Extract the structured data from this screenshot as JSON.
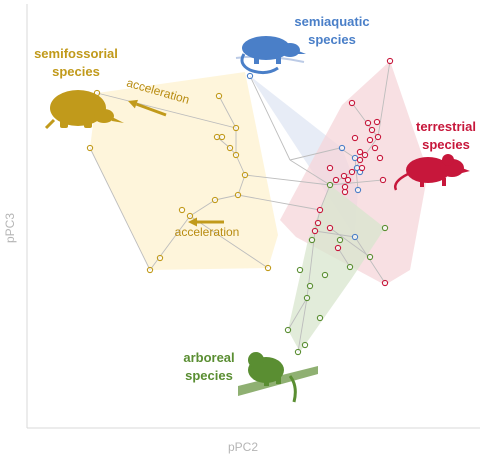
{
  "chart_data": {
    "type": "scatter",
    "title": "",
    "xlabel": "pPC2",
    "ylabel": "pPC3",
    "grid": false,
    "legend": "none",
    "annotations": [
      "acceleration",
      "acceleration"
    ],
    "colors": {
      "semifossorial": "#c19a1b",
      "semiaquatic": "#4a7fc8",
      "terrestrial": "#c7173b",
      "arboreal": "#5a8e32",
      "semifossorial_fill": "#fdf1cf",
      "semiaquatic_fill": "#dfe6f3",
      "terrestrial_fill": "#f6d5d9",
      "arboreal_fill": "#d8e6cd",
      "tree_line": "#bdbdbd",
      "axis": "#d9d9d9"
    },
    "groups": [
      {
        "name": "semifossorial",
        "label_lines": [
          "semifossorial",
          "species"
        ],
        "color_key": "semifossorial",
        "points": [
          [
            97,
            93
          ],
          [
            90,
            148
          ],
          [
            150,
            270
          ],
          [
            268,
            268
          ],
          [
            238,
            195
          ],
          [
            236,
            128
          ],
          [
            230,
            148
          ],
          [
            217,
            137
          ],
          [
            222,
            137
          ],
          [
            219,
            96
          ],
          [
            236,
            155
          ],
          [
            190,
            216
          ],
          [
            160,
            258
          ],
          [
            215,
            200
          ],
          [
            245,
            175
          ],
          [
            182,
            210
          ]
        ],
        "hull": [
          [
            97,
            93
          ],
          [
            245,
            72
          ],
          [
            278,
            235
          ],
          [
            268,
            268
          ],
          [
            150,
            270
          ],
          [
            90,
            148
          ]
        ]
      },
      {
        "name": "semiaquatic",
        "label_lines": [
          "semiaquatic",
          "species"
        ],
        "color_key": "semiaquatic",
        "points": [
          [
            250,
            76
          ],
          [
            342,
            148
          ],
          [
            355,
            158
          ],
          [
            358,
            190
          ],
          [
            357,
            168
          ],
          [
            355,
            237
          ],
          [
            360,
            172
          ]
        ],
        "hull": [
          [
            250,
            76
          ],
          [
            342,
            148
          ],
          [
            358,
            190
          ],
          [
            355,
            237
          ]
        ]
      },
      {
        "name": "terrestrial",
        "label_lines": [
          "terrestrial",
          "species"
        ],
        "color_key": "terrestrial",
        "points": [
          [
            390,
            61
          ],
          [
            352,
            103
          ],
          [
            368,
            123
          ],
          [
            377,
            122
          ],
          [
            372,
            130
          ],
          [
            375,
            148
          ],
          [
            380,
            158
          ],
          [
            378,
            137
          ],
          [
            365,
            155
          ],
          [
            360,
            160
          ],
          [
            362,
            168
          ],
          [
            352,
            172
          ],
          [
            348,
            180
          ],
          [
            345,
            192
          ],
          [
            383,
            180
          ],
          [
            320,
            210
          ],
          [
            330,
            228
          ],
          [
            338,
            248
          ],
          [
            315,
            231
          ],
          [
            336,
            180
          ],
          [
            345,
            187
          ],
          [
            370,
            140
          ],
          [
            355,
            138
          ],
          [
            330,
            168
          ],
          [
            318,
            223
          ],
          [
            385,
            283
          ],
          [
            360,
            152
          ],
          [
            344,
            176
          ]
        ],
        "hull": [
          [
            390,
            61
          ],
          [
            428,
            172
          ],
          [
            410,
            270
          ],
          [
            385,
            285
          ],
          [
            296,
            237
          ],
          [
            280,
            220
          ],
          [
            342,
            105
          ]
        ]
      },
      {
        "name": "arboreal",
        "label_lines": [
          "arboreal",
          "species"
        ],
        "color_key": "arboreal",
        "points": [
          [
            330,
            185
          ],
          [
            307,
            298
          ],
          [
            288,
            330
          ],
          [
            298,
            352
          ],
          [
            305,
            345
          ],
          [
            320,
            318
          ],
          [
            340,
            240
          ],
          [
            350,
            267
          ],
          [
            385,
            228
          ],
          [
            370,
            257
          ],
          [
            310,
            286
          ],
          [
            300,
            270
          ],
          [
            325,
            275
          ],
          [
            312,
            240
          ]
        ],
        "hull": [
          [
            330,
            185
          ],
          [
            385,
            228
          ],
          [
            352,
            278
          ],
          [
            300,
            352
          ],
          [
            288,
            330
          ],
          [
            308,
            240
          ]
        ]
      }
    ],
    "tree_edges": [
      [
        [
          97,
          93
        ],
        [
          236,
          128
        ]
      ],
      [
        [
          90,
          148
        ],
        [
          150,
          270
        ]
      ],
      [
        [
          150,
          270
        ],
        [
          190,
          216
        ]
      ],
      [
        [
          190,
          216
        ],
        [
          268,
          268
        ]
      ],
      [
        [
          190,
          216
        ],
        [
          215,
          200
        ]
      ],
      [
        [
          215,
          200
        ],
        [
          238,
          195
        ]
      ],
      [
        [
          238,
          195
        ],
        [
          245,
          175
        ]
      ],
      [
        [
          245,
          175
        ],
        [
          236,
          155
        ]
      ],
      [
        [
          236,
          155
        ],
        [
          230,
          148
        ]
      ],
      [
        [
          230,
          148
        ],
        [
          217,
          137
        ]
      ],
      [
        [
          217,
          137
        ],
        [
          222,
          137
        ]
      ],
      [
        [
          236,
          128
        ],
        [
          219,
          96
        ]
      ],
      [
        [
          236,
          128
        ],
        [
          236,
          155
        ]
      ],
      [
        [
          245,
          175
        ],
        [
          330,
          185
        ]
      ],
      [
        [
          250,
          76
        ],
        [
          290,
          160
        ]
      ],
      [
        [
          290,
          160
        ],
        [
          330,
          185
        ]
      ],
      [
        [
          290,
          160
        ],
        [
          340,
          148
        ]
      ],
      [
        [
          340,
          148
        ],
        [
          355,
          158
        ]
      ],
      [
        [
          355,
          158
        ],
        [
          358,
          190
        ]
      ],
      [
        [
          330,
          185
        ],
        [
          352,
          172
        ]
      ],
      [
        [
          352,
          172
        ],
        [
          365,
          155
        ]
      ],
      [
        [
          365,
          155
        ],
        [
          378,
          137
        ]
      ],
      [
        [
          378,
          137
        ],
        [
          390,
          61
        ]
      ],
      [
        [
          378,
          137
        ],
        [
          372,
          130
        ]
      ],
      [
        [
          372,
          130
        ],
        [
          352,
          103
        ]
      ],
      [
        [
          330,
          185
        ],
        [
          320,
          210
        ]
      ],
      [
        [
          320,
          210
        ],
        [
          315,
          231
        ]
      ],
      [
        [
          315,
          231
        ],
        [
          307,
          298
        ]
      ],
      [
        [
          307,
          298
        ],
        [
          288,
          330
        ]
      ],
      [
        [
          307,
          298
        ],
        [
          298,
          352
        ]
      ],
      [
        [
          315,
          231
        ],
        [
          355,
          237
        ]
      ],
      [
        [
          355,
          237
        ],
        [
          385,
          283
        ]
      ],
      [
        [
          238,
          195
        ],
        [
          320,
          210
        ]
      ],
      [
        [
          330,
          185
        ],
        [
          383,
          180
        ]
      ],
      [
        [
          330,
          228
        ],
        [
          370,
          257
        ]
      ],
      [
        [
          338,
          248
        ],
        [
          350,
          267
        ]
      ]
    ],
    "accelerations": [
      {
        "label": "acceleration",
        "from": [
          166,
          115
        ],
        "to": [
          128,
          101
        ],
        "text_pos": [
          157,
          95
        ],
        "text_angle": 16
      },
      {
        "label": "acceleration",
        "from": [
          224,
          222
        ],
        "to": [
          188,
          222
        ],
        "text_pos": [
          207,
          236
        ],
        "text_angle": 0
      }
    ]
  }
}
